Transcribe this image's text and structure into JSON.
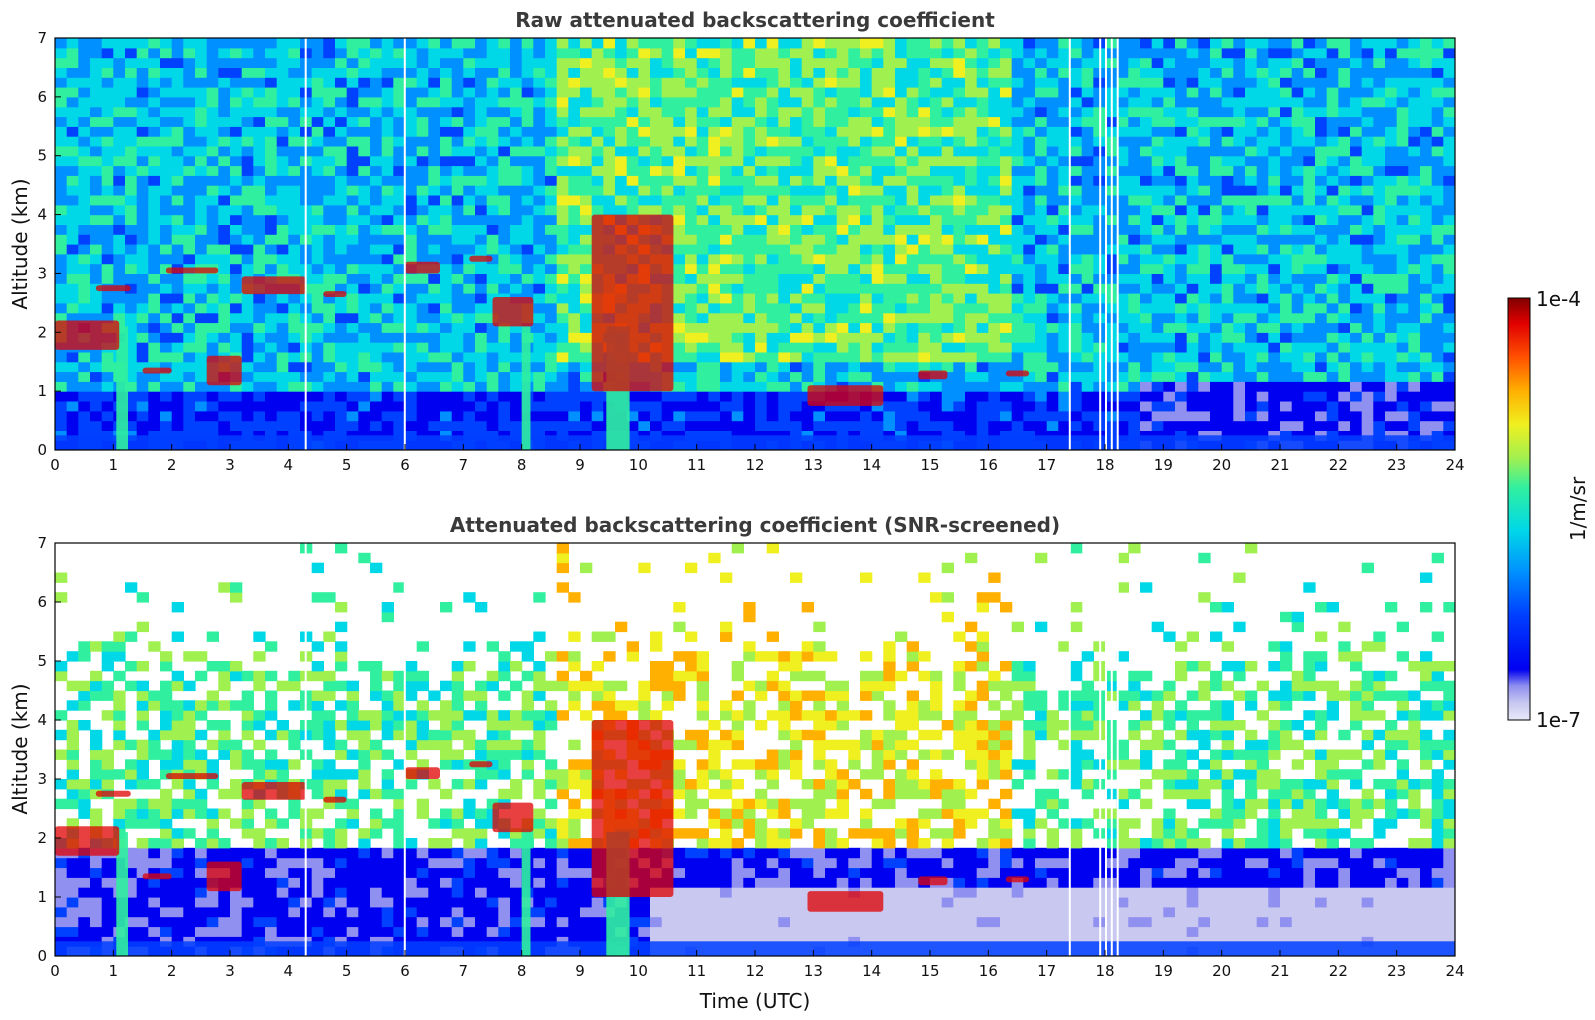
{
  "chart_data": [
    {
      "type": "heatmap",
      "title": "Raw attenuated backscattering coefficient",
      "xlabel": "",
      "ylabel": "Altitude (km)",
      "xlim": [
        0,
        24
      ],
      "ylim": [
        0,
        7
      ],
      "xticks": [
        "0",
        "1",
        "2",
        "3",
        "4",
        "5",
        "6",
        "7",
        "8",
        "9",
        "10",
        "11",
        "12",
        "13",
        "14",
        "15",
        "16",
        "17",
        "18",
        "19",
        "20",
        "21",
        "22",
        "23",
        "24"
      ],
      "yticks": [
        "0",
        "1",
        "2",
        "3",
        "4",
        "5",
        "6",
        "7"
      ],
      "features": {
        "surface_layer_top_km": 0.45,
        "precip_columns_utc": [
          [
            1.05,
            1.25
          ],
          [
            8.0,
            8.15
          ],
          [
            9.45,
            9.85
          ]
        ],
        "cloud_layers": [
          {
            "t": [
              0.0,
              1.1
            ],
            "alt_km": [
              1.7,
              2.2
            ]
          },
          {
            "t": [
              0.7,
              1.3
            ],
            "alt_km": [
              2.7,
              2.8
            ]
          },
          {
            "t": [
              1.5,
              2.0
            ],
            "alt_km": [
              1.3,
              1.4
            ]
          },
          {
            "t": [
              1.9,
              2.8
            ],
            "alt_km": [
              3.0,
              3.1
            ]
          },
          {
            "t": [
              2.6,
              3.2
            ],
            "alt_km": [
              1.1,
              1.6
            ]
          },
          {
            "t": [
              3.2,
              4.3
            ],
            "alt_km": [
              2.65,
              2.95
            ]
          },
          {
            "t": [
              4.6,
              5.0
            ],
            "alt_km": [
              2.6,
              2.7
            ]
          },
          {
            "t": [
              6.0,
              6.6
            ],
            "alt_km": [
              3.0,
              3.2
            ]
          },
          {
            "t": [
              7.1,
              7.5
            ],
            "alt_km": [
              3.2,
              3.3
            ]
          },
          {
            "t": [
              7.5,
              8.2
            ],
            "alt_km": [
              2.1,
              2.6
            ]
          },
          {
            "t": [
              9.2,
              10.6
            ],
            "alt_km": [
              1.0,
              4.0
            ]
          },
          {
            "t": [
              12.9,
              14.2
            ],
            "alt_km": [
              0.75,
              1.1
            ]
          },
          {
            "t": [
              14.8,
              15.3
            ],
            "alt_km": [
              1.2,
              1.35
            ]
          },
          {
            "t": [
              16.3,
              16.7
            ],
            "alt_km": [
              1.25,
              1.35
            ]
          }
        ],
        "missing_data_utc": [
          4.28,
          5.98,
          17.38,
          17.9,
          18.0,
          18.1,
          18.2
        ]
      }
    },
    {
      "type": "heatmap",
      "title": "Attenuated backscattering coefficient (SNR-screened)",
      "xlabel": "Time (UTC)",
      "ylabel": "Altitude (km)",
      "xlim": [
        0,
        24
      ],
      "ylim": [
        0,
        7
      ],
      "xticks": [
        "0",
        "1",
        "2",
        "3",
        "4",
        "5",
        "6",
        "7",
        "8",
        "9",
        "10",
        "11",
        "12",
        "13",
        "14",
        "15",
        "16",
        "17",
        "18",
        "19",
        "20",
        "21",
        "22",
        "23",
        "24"
      ],
      "yticks": [
        "0",
        "1",
        "2",
        "3",
        "4",
        "5",
        "6",
        "7"
      ],
      "features": {
        "surface_layer_top_km": 1.9,
        "screened_above_km": 4.5,
        "missing_data_utc": [
          4.28,
          5.98,
          17.38,
          17.9,
          18.0,
          18.1,
          18.2
        ]
      }
    }
  ],
  "colorbar": {
    "label": "1/m/sr",
    "max_label": "1e-4",
    "min_label": "1e-7",
    "scale": "log",
    "range": [
      1e-07,
      0.0001
    ],
    "colors": [
      "#e8e8f8",
      "#c8c8f0",
      "#9090f0",
      "#0000f0",
      "#0040ff",
      "#0090ff",
      "#00d8e8",
      "#30f0a0",
      "#a0f050",
      "#f0f020",
      "#ffb000",
      "#ff5000",
      "#e00000",
      "#800000"
    ]
  }
}
